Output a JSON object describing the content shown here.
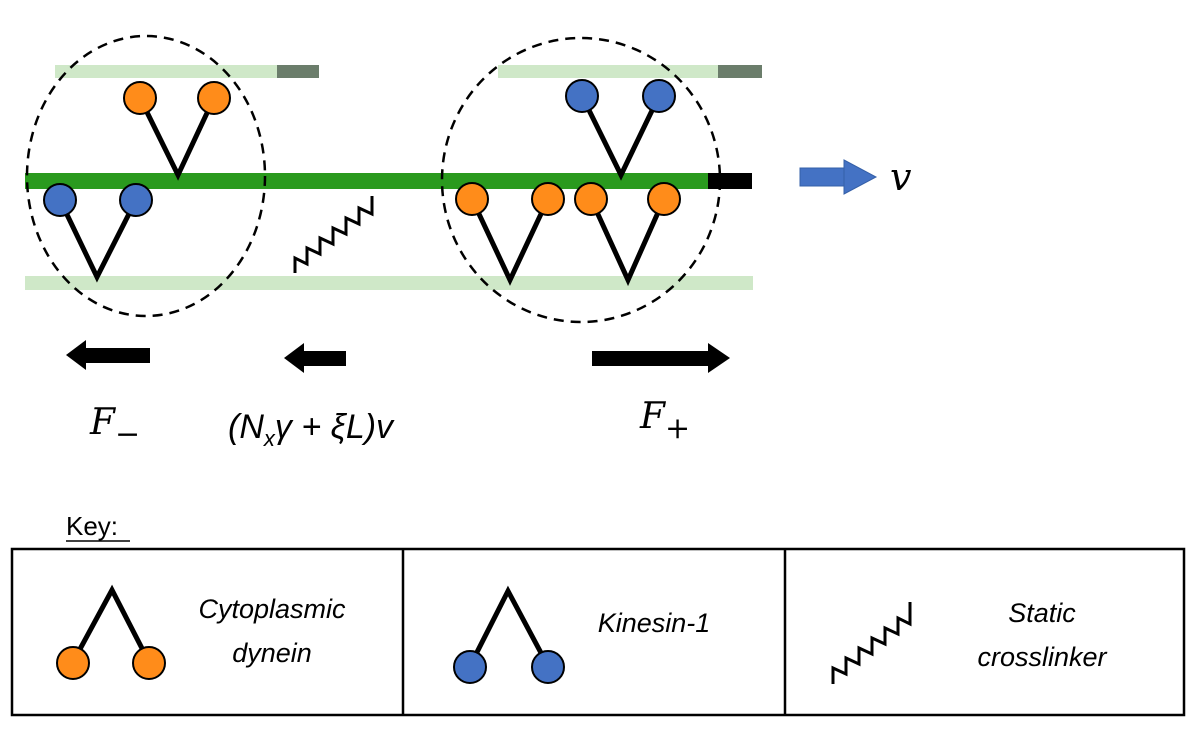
{
  "labels": {
    "velocity": "v",
    "force_minus": "F",
    "force_minus_sub": "−",
    "force_plus": "F",
    "force_plus_sub": "+",
    "drag_open": "(N",
    "drag_sub": "x",
    "drag_rest": "γ + ξL)v"
  },
  "key": {
    "title": "Key:",
    "items": [
      {
        "line1": "Cytoplasmic",
        "line2": "dynein"
      },
      {
        "line1": "Kinesin-1",
        "line2": ""
      },
      {
        "line1": "Static",
        "line2": "crosslinker"
      }
    ]
  },
  "colors": {
    "dynein": "#ff8c1a",
    "kinesin": "#4472c4",
    "central_microtubule": "#2a9a1e",
    "antiparallel_microtubule": "#cfe8c8",
    "microtubule_plus_cap_light": "#6b7d6b",
    "microtubule_plus_cap_dark": "#000000",
    "velocity_arrow": "#4472c4",
    "force_arrow": "#000000"
  }
}
